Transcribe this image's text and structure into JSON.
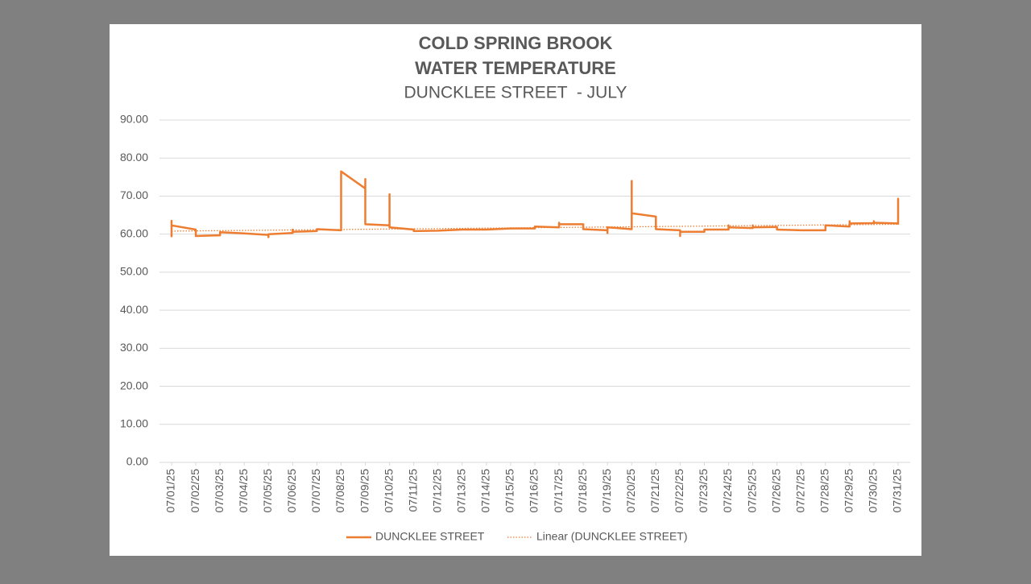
{
  "chart_data": {
    "type": "line",
    "title": [
      "COLD SPRING BROOK",
      "WATER TEMPERATURE"
    ],
    "subtitle": "DUNCKLEE STREET  - JULY",
    "xlim": [
      0.5,
      31.5
    ],
    "xticks": [
      {
        "value": 1,
        "label": "07/01/25"
      },
      {
        "value": 2,
        "label": "07/02/25"
      },
      {
        "value": 3,
        "label": "07/03/25"
      },
      {
        "value": 4,
        "label": "07/04/25"
      },
      {
        "value": 5,
        "label": "07/05/25"
      },
      {
        "value": 6,
        "label": "07/06/25"
      },
      {
        "value": 7,
        "label": "07/07/25"
      },
      {
        "value": 8,
        "label": "07/08/25"
      },
      {
        "value": 9,
        "label": "07/09/25"
      },
      {
        "value": 10,
        "label": "07/10/25"
      },
      {
        "value": 11,
        "label": "07/11/25"
      },
      {
        "value": 12,
        "label": "07/12/25"
      },
      {
        "value": 13,
        "label": "07/13/25"
      },
      {
        "value": 14,
        "label": "07/14/25"
      },
      {
        "value": 15,
        "label": "07/15/25"
      },
      {
        "value": 16,
        "label": "07/16/25"
      },
      {
        "value": 17,
        "label": "07/17/25"
      },
      {
        "value": 18,
        "label": "07/18/25"
      },
      {
        "value": 19,
        "label": "07/19/25"
      },
      {
        "value": 20,
        "label": "07/20/25"
      },
      {
        "value": 21,
        "label": "07/21/25"
      },
      {
        "value": 22,
        "label": "07/22/25"
      },
      {
        "value": 23,
        "label": "07/23/25"
      },
      {
        "value": 24,
        "label": "07/24/25"
      },
      {
        "value": 25,
        "label": "07/25/25"
      },
      {
        "value": 26,
        "label": "07/26/25"
      },
      {
        "value": 27,
        "label": "07/27/25"
      },
      {
        "value": 28,
        "label": "07/28/25"
      },
      {
        "value": 29,
        "label": "07/29/25"
      },
      {
        "value": 30,
        "label": "07/30/25"
      },
      {
        "value": 31,
        "label": "07/31/25"
      }
    ],
    "ylim": [
      0,
      90
    ],
    "yticks": [
      {
        "value": 0,
        "label": "0.00"
      },
      {
        "value": 10,
        "label": "10.00"
      },
      {
        "value": 20,
        "label": "20.00"
      },
      {
        "value": 30,
        "label": "30.00"
      },
      {
        "value": 40,
        "label": "40.00"
      },
      {
        "value": 50,
        "label": "50.00"
      },
      {
        "value": 60,
        "label": "60.00"
      },
      {
        "value": 70,
        "label": "70.00"
      },
      {
        "value": 80,
        "label": "80.00"
      },
      {
        "value": 90,
        "label": "90.00"
      }
    ],
    "grid": true,
    "legend": "bottom",
    "series": [
      {
        "name": "DUNCKLEE STREET",
        "color": "#ed7d31",
        "style": "solid",
        "x": [
          1,
          1,
          1,
          2,
          2,
          3,
          3,
          4,
          5,
          5,
          5,
          6,
          6,
          6,
          7,
          7,
          8,
          8,
          9,
          9,
          9,
          10,
          10,
          10,
          11,
          11,
          12,
          13,
          14,
          15,
          16,
          16,
          17,
          17,
          17,
          18,
          18,
          19,
          19,
          19,
          20,
          20,
          20,
          21,
          21,
          22,
          22,
          22,
          23,
          23,
          24,
          24,
          24,
          25,
          25,
          25,
          26,
          26,
          27,
          28,
          28,
          29,
          29,
          29,
          30,
          30,
          30,
          31,
          31,
          31
        ],
        "values": [
          59.2,
          63.5,
          62.3,
          61.2,
          59.5,
          59.7,
          60.5,
          60.2,
          59.8,
          59.2,
          60.0,
          60.3,
          61.2,
          60.6,
          60.8,
          61.3,
          61.0,
          76.5,
          72.0,
          74.5,
          62.6,
          62.3,
          70.5,
          61.8,
          61.2,
          60.8,
          60.9,
          61.2,
          61.2,
          61.5,
          61.5,
          62.0,
          61.8,
          63.0,
          62.6,
          62.6,
          61.3,
          61.0,
          60.3,
          61.8,
          61.3,
          74.0,
          65.5,
          64.6,
          61.3,
          61.0,
          59.5,
          60.6,
          60.6,
          61.2,
          61.2,
          62.3,
          61.8,
          61.6,
          62.3,
          61.8,
          61.9,
          61.2,
          61.0,
          61.0,
          62.3,
          62.0,
          63.4,
          62.8,
          62.9,
          63.4,
          63.0,
          62.8,
          69.3,
          62.5
        ]
      },
      {
        "name": "Linear (DUNCKLEE STREET)",
        "color": "#ed7d31",
        "style": "dotted",
        "x": [
          1,
          31
        ],
        "values": [
          60.8,
          62.6
        ]
      }
    ]
  }
}
